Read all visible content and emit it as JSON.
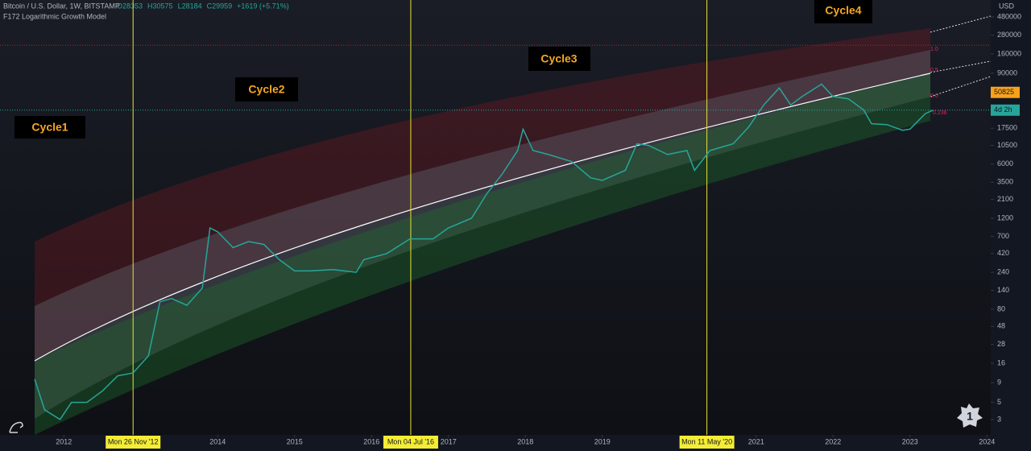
{
  "header": {
    "symbol": "Bitcoin / U.S. Dollar, 1W, BITSTAMP",
    "ohlc": [
      "O28353",
      "H30575",
      "L28184",
      "C29959",
      "+1619 (+5.71%)"
    ],
    "indicator": "F172 Logarithmic Growth Model"
  },
  "chart_data": {
    "type": "line",
    "log_scale": true,
    "currency": "USD",
    "color": "#26a69a",
    "x": [
      2011.62,
      2011.75,
      2011.95,
      2012.1,
      2012.3,
      2012.5,
      2012.7,
      2012.9,
      2013.1,
      2013.25,
      2013.4,
      2013.6,
      2013.8,
      2013.9,
      2014.0,
      2014.2,
      2014.4,
      2014.6,
      2014.8,
      2015.0,
      2015.2,
      2015.5,
      2015.8,
      2015.9,
      2016.2,
      2016.5,
      2016.8,
      2017.0,
      2017.3,
      2017.5,
      2017.7,
      2017.9,
      2017.97,
      2018.1,
      2018.3,
      2018.6,
      2018.85,
      2019.0,
      2019.3,
      2019.45,
      2019.6,
      2019.85,
      2020.1,
      2020.2,
      2020.4,
      2020.7,
      2020.9,
      2021.1,
      2021.3,
      2021.45,
      2021.6,
      2021.85,
      2022.0,
      2022.2,
      2022.4,
      2022.5,
      2022.7,
      2022.9,
      2023.0,
      2023.2,
      2023.3
    ],
    "values": [
      10,
      4,
      3,
      5,
      5,
      7,
      11,
      12,
      20,
      100,
      110,
      90,
      150,
      900,
      800,
      500,
      600,
      550,
      350,
      250,
      250,
      260,
      240,
      350,
      420,
      650,
      650,
      900,
      1200,
      2500,
      4500,
      9000,
      17000,
      9000,
      8000,
      6500,
      4000,
      3700,
      5000,
      11000,
      10500,
      8000,
      9000,
      5000,
      9000,
      11000,
      18000,
      35000,
      58000,
      35000,
      45000,
      65000,
      45000,
      42000,
      30000,
      20000,
      19500,
      16500,
      17000,
      27000,
      29959
    ],
    "xlim": [
      2011.17,
      2024.05
    ],
    "xticks": [
      2012,
      2014,
      2015,
      2016,
      2017,
      2018,
      2019,
      2021,
      2022,
      2023,
      2024
    ],
    "ylim": [
      1.9,
      795000
    ],
    "yticks": [
      480000,
      280000,
      160000,
      90000,
      17500,
      10500,
      6000,
      3500,
      2100,
      1200,
      700,
      420,
      240,
      140,
      80,
      48,
      28,
      16,
      9,
      5,
      3
    ],
    "date_markers": [
      {
        "label": "Mon 26 Nov '12",
        "x": 2012.9
      },
      {
        "label": "Mon 04 Jul '16",
        "x": 2016.51
      },
      {
        "label": "Mon 11 May '20",
        "x": 2020.36
      }
    ],
    "price_labels": [
      {
        "value": 50825,
        "label": "50825",
        "color": "#f7a21b"
      },
      {
        "value": 29959,
        "label": "4d 2h",
        "color": "#26a69a"
      }
    ],
    "hlines": [
      {
        "value": 207000,
        "color": "#b22833"
      },
      {
        "value": 29959,
        "color": "#26a69a"
      }
    ],
    "cycles": [
      "Cycle1",
      "Cycle2",
      "Cycle3",
      "Cycle4"
    ],
    "fib_labels": [
      "1.0",
      "0.5",
      "0.0",
      "0.236"
    ]
  },
  "badge": "1"
}
